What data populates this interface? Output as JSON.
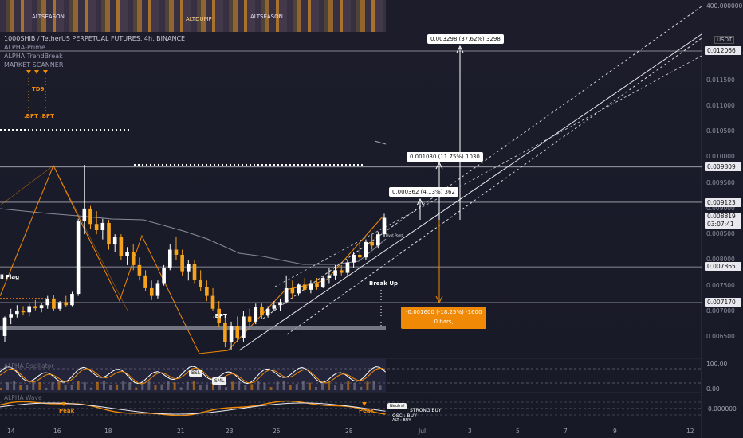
{
  "header": {
    "symbol_line": "1000SHIB / TetherUS PERPETUAL FUTURES, 4h, BINANCE",
    "indicators": [
      "ALPHA-Prime",
      "ALPHA TrendBreak",
      "MARKET SCANNER"
    ],
    "currency_badge": "USDT"
  },
  "top_strip": {
    "scale_label": "400.000000",
    "labels": [
      "ALTSEASON",
      "ALTDUMP",
      "ALTSEASON"
    ]
  },
  "price_axis": {
    "ticks": [
      "0.011500",
      "0.011000",
      "0.010500",
      "0.010000",
      "0.009500",
      "0.009000",
      "0.008500",
      "0.008000",
      "0.007500",
      "0.007000",
      "0.006500"
    ],
    "highlighted": [
      "0.012066",
      "0.009809",
      "0.009123",
      "0.008819",
      "0.007865",
      "0.007170"
    ],
    "countdown": "03:07:41"
  },
  "annotations": {
    "td9": "TD9",
    "bpt_left": ".BPT",
    "bpt_right": ".BPT",
    "bpt_low": ".BPT",
    "flag": "ll Flag",
    "break_up": "Break Up",
    "small_label": "Pivot Point"
  },
  "callouts": {
    "top": "0.003298 (37.62%) 3298",
    "mid": "0.001030 (11.75%) 1030",
    "low": "0.000362 (4.13%) 362",
    "neg_line1": "-0.001600 (-18.25%) -1600",
    "neg_line2": "0 bars,"
  },
  "oscillator1": {
    "name": "ALPHA Oscillator",
    "axis": [
      "100.00",
      "0.00"
    ],
    "tags": [
      "BSL",
      "SML"
    ]
  },
  "oscillator2": {
    "name": "ALPHA Wave",
    "axis": [
      "0.000000"
    ],
    "peak_labels": [
      "Peak",
      "Peak"
    ],
    "legend": [
      "Neutral",
      "STRONG BUY",
      "OSC : BUY",
      "ALT : BUY"
    ]
  },
  "time_axis": [
    "14",
    "16",
    "18",
    "21",
    "23",
    "25",
    "28",
    "Jul",
    "3",
    "5",
    "7",
    "9",
    "12"
  ],
  "colors": {
    "bull": "#ffffff",
    "bear": "#f7a21b",
    "level": "#c8c8d0",
    "orange": "#f08a06",
    "bg": "#1c1c2b"
  },
  "chart_data": {
    "type": "candlestick",
    "timeframe": "4h",
    "ylim": [
      0.0062,
      0.0122
    ],
    "current_price": 0.008819,
    "levels": [
      0.012066,
      0.009809,
      0.009123,
      0.007865,
      0.00717
    ],
    "candles": [
      [
        0.00652,
        0.0069,
        0.0064,
        0.00688
      ],
      [
        0.00688,
        0.00705,
        0.00675,
        0.00695
      ],
      [
        0.00695,
        0.00712,
        0.00688,
        0.007
      ],
      [
        0.007,
        0.0071,
        0.00692,
        0.00698
      ],
      [
        0.00698,
        0.00715,
        0.0069,
        0.0071
      ],
      [
        0.0071,
        0.00722,
        0.00702,
        0.00706
      ],
      [
        0.00706,
        0.00716,
        0.00698,
        0.00712
      ],
      [
        0.00712,
        0.0073,
        0.00705,
        0.00725
      ],
      [
        0.00725,
        0.00732,
        0.007,
        0.00705
      ],
      [
        0.00705,
        0.0072,
        0.007,
        0.00718
      ],
      [
        0.00718,
        0.0073,
        0.00708,
        0.00712
      ],
      [
        0.00712,
        0.00738,
        0.0071,
        0.00734
      ],
      [
        0.00734,
        0.0088,
        0.0073,
        0.00875
      ],
      [
        0.00875,
        0.00985,
        0.0085,
        0.009
      ],
      [
        0.009,
        0.00905,
        0.0086,
        0.0087
      ],
      [
        0.0087,
        0.00895,
        0.0085,
        0.00858
      ],
      [
        0.00858,
        0.0088,
        0.0084,
        0.00872
      ],
      [
        0.00872,
        0.00878,
        0.0082,
        0.0083
      ],
      [
        0.0083,
        0.0085,
        0.00815,
        0.00845
      ],
      [
        0.00845,
        0.0085,
        0.008,
        0.00808
      ],
      [
        0.00808,
        0.00825,
        0.0079,
        0.00815
      ],
      [
        0.00815,
        0.0083,
        0.0078,
        0.0079
      ],
      [
        0.0079,
        0.00805,
        0.0076,
        0.0077
      ],
      [
        0.0077,
        0.0078,
        0.0074,
        0.00745
      ],
      [
        0.00745,
        0.0076,
        0.00722,
        0.0073
      ],
      [
        0.0073,
        0.0076,
        0.00725,
        0.00755
      ],
      [
        0.00755,
        0.0079,
        0.0075,
        0.00785
      ],
      [
        0.00785,
        0.0083,
        0.0078,
        0.0082
      ],
      [
        0.0082,
        0.00845,
        0.008,
        0.0081
      ],
      [
        0.0081,
        0.0082,
        0.0077,
        0.00778
      ],
      [
        0.00778,
        0.008,
        0.0076,
        0.00792
      ],
      [
        0.00792,
        0.008,
        0.00755,
        0.00762
      ],
      [
        0.00762,
        0.0078,
        0.0074,
        0.00748
      ],
      [
        0.00748,
        0.0076,
        0.0072,
        0.0073
      ],
      [
        0.0073,
        0.00745,
        0.007,
        0.00705
      ],
      [
        0.00705,
        0.0072,
        0.0067,
        0.00678
      ],
      [
        0.00678,
        0.0069,
        0.0063,
        0.0064
      ],
      [
        0.0064,
        0.0068,
        0.00625,
        0.00672
      ],
      [
        0.00672,
        0.0069,
        0.0064,
        0.00648
      ],
      [
        0.00648,
        0.007,
        0.0064,
        0.0069
      ],
      [
        0.0069,
        0.00705,
        0.0067,
        0.0068
      ],
      [
        0.0068,
        0.00715,
        0.00675,
        0.00708
      ],
      [
        0.00708,
        0.00715,
        0.00685,
        0.00692
      ],
      [
        0.00692,
        0.0071,
        0.00688,
        0.00705
      ],
      [
        0.00705,
        0.0072,
        0.007,
        0.00712
      ],
      [
        0.00712,
        0.00725,
        0.007,
        0.00718
      ],
      [
        0.00718,
        0.0077,
        0.00715,
        0.00745
      ],
      [
        0.00745,
        0.0076,
        0.00725,
        0.00735
      ],
      [
        0.00735,
        0.00755,
        0.0073,
        0.00752
      ],
      [
        0.00752,
        0.00765,
        0.00738,
        0.00742
      ],
      [
        0.00742,
        0.0076,
        0.00735,
        0.00755
      ],
      [
        0.00755,
        0.00765,
        0.00742,
        0.00748
      ],
      [
        0.00748,
        0.00768,
        0.00745,
        0.00765
      ],
      [
        0.00765,
        0.00785,
        0.00755,
        0.0077
      ],
      [
        0.0077,
        0.0079,
        0.00762,
        0.0078
      ],
      [
        0.0078,
        0.0079,
        0.0077,
        0.00775
      ],
      [
        0.00775,
        0.008,
        0.0077,
        0.00795
      ],
      [
        0.00795,
        0.00815,
        0.00785,
        0.0081
      ],
      [
        0.0081,
        0.0083,
        0.008,
        0.00805
      ],
      [
        0.00805,
        0.0084,
        0.008,
        0.00835
      ],
      [
        0.00835,
        0.0085,
        0.0082,
        0.00828
      ],
      [
        0.00828,
        0.00855,
        0.00822,
        0.0085
      ],
      [
        0.0085,
        0.0089,
        0.00845,
        0.00882
      ]
    ]
  }
}
